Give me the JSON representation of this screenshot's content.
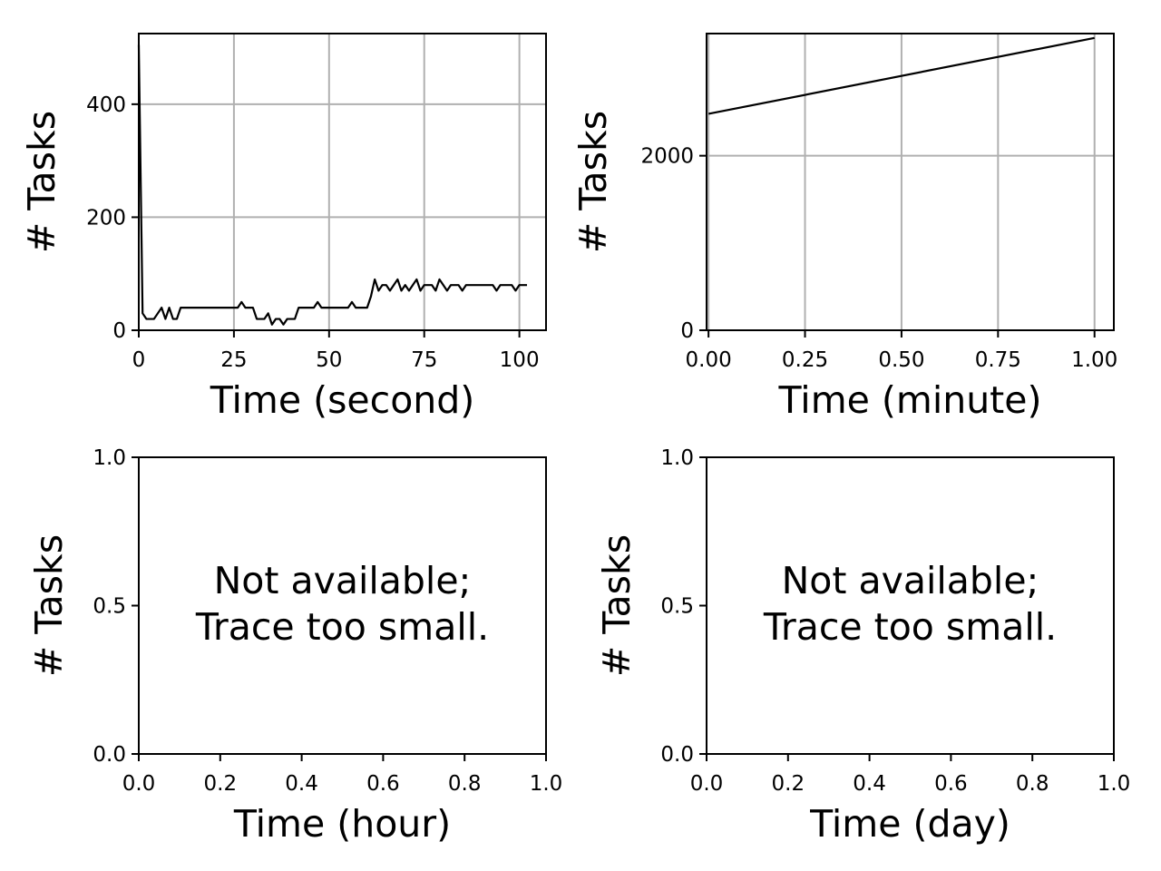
{
  "chart_data": [
    {
      "type": "line",
      "title": "",
      "xlabel": "Time (second)",
      "ylabel": "# Tasks",
      "xlim": [
        0,
        107
      ],
      "ylim": [
        0,
        525
      ],
      "xticks": [
        0,
        25,
        50,
        75,
        100
      ],
      "xtick_labels": [
        "0",
        "25",
        "50",
        "75",
        "100"
      ],
      "yticks": [
        0,
        200,
        400
      ],
      "ytick_labels": [
        "0",
        "200",
        "400"
      ],
      "grid": true,
      "note": [],
      "series": [
        {
          "name": "tasks",
          "color": "#000000",
          "x": [
            0,
            1,
            2,
            3,
            4,
            5,
            6,
            7,
            8,
            9,
            10,
            11,
            12,
            13,
            14,
            15,
            16,
            17,
            18,
            19,
            20,
            21,
            22,
            23,
            24,
            25,
            26,
            27,
            28,
            29,
            30,
            31,
            32,
            33,
            34,
            35,
            36,
            37,
            38,
            39,
            40,
            41,
            42,
            43,
            44,
            45,
            46,
            47,
            48,
            49,
            50,
            51,
            52,
            53,
            54,
            55,
            56,
            57,
            58,
            59,
            60,
            61,
            62,
            63,
            64,
            65,
            66,
            67,
            68,
            69,
            70,
            71,
            72,
            73,
            74,
            75,
            76,
            77,
            78,
            79,
            80,
            81,
            82,
            83,
            84,
            85,
            86,
            87,
            88,
            89,
            90,
            91,
            92,
            93,
            94,
            95,
            96,
            97,
            98,
            99,
            100,
            101,
            102
          ],
          "values": [
            505,
            30,
            20,
            20,
            20,
            30,
            40,
            20,
            40,
            20,
            20,
            40,
            40,
            40,
            40,
            40,
            40,
            40,
            40,
            40,
            40,
            40,
            40,
            40,
            40,
            40,
            40,
            50,
            40,
            40,
            40,
            20,
            20,
            20,
            30,
            10,
            20,
            20,
            10,
            20,
            20,
            20,
            40,
            40,
            40,
            40,
            40,
            50,
            40,
            40,
            40,
            40,
            40,
            40,
            40,
            40,
            50,
            40,
            40,
            40,
            40,
            60,
            90,
            70,
            80,
            80,
            70,
            80,
            90,
            70,
            80,
            70,
            80,
            90,
            70,
            80,
            80,
            80,
            70,
            90,
            80,
            70,
            80,
            80,
            80,
            70,
            80,
            80,
            80,
            80,
            80,
            80,
            80,
            80,
            70,
            80,
            80,
            80,
            80,
            70,
            80,
            80,
            80
          ]
        }
      ]
    },
    {
      "type": "line",
      "title": "",
      "xlabel": "Time (minute)",
      "ylabel": "# Tasks",
      "xlim": [
        -0.005,
        1.05
      ],
      "ylim": [
        0,
        3400
      ],
      "xticks": [
        0.0,
        0.25,
        0.5,
        0.75,
        1.0
      ],
      "xtick_labels": [
        "0.00",
        "0.25",
        "0.50",
        "0.75",
        "1.00"
      ],
      "yticks": [
        0,
        2000
      ],
      "ytick_labels": [
        "0",
        "2000"
      ],
      "grid": true,
      "note": [],
      "series": [
        {
          "name": "tasks",
          "color": "#000000",
          "x": [
            0,
            1
          ],
          "values": [
            2480,
            3350
          ]
        }
      ]
    },
    {
      "type": "line",
      "title": "",
      "xlabel": "Time (hour)",
      "ylabel": "# Tasks",
      "xlim": [
        0,
        1
      ],
      "ylim": [
        0,
        1
      ],
      "xticks": [
        0.0,
        0.2,
        0.4,
        0.6,
        0.8,
        1.0
      ],
      "xtick_labels": [
        "0.0",
        "0.2",
        "0.4",
        "0.6",
        "0.8",
        "1.0"
      ],
      "yticks": [
        0.0,
        0.5,
        1.0
      ],
      "ytick_labels": [
        "0.0",
        "0.5",
        "1.0"
      ],
      "grid": false,
      "note": [
        "Not available;",
        "Trace too small."
      ],
      "series": []
    },
    {
      "type": "line",
      "title": "",
      "xlabel": "Time (day)",
      "ylabel": "# Tasks",
      "xlim": [
        0,
        1
      ],
      "ylim": [
        0,
        1
      ],
      "xticks": [
        0.0,
        0.2,
        0.4,
        0.6,
        0.8,
        1.0
      ],
      "xtick_labels": [
        "0.0",
        "0.2",
        "0.4",
        "0.6",
        "0.8",
        "1.0"
      ],
      "yticks": [
        0.0,
        0.5,
        1.0
      ],
      "ytick_labels": [
        "0.0",
        "0.5",
        "1.0"
      ],
      "grid": false,
      "note": [
        "Not available;",
        "Trace too small."
      ],
      "series": []
    }
  ]
}
